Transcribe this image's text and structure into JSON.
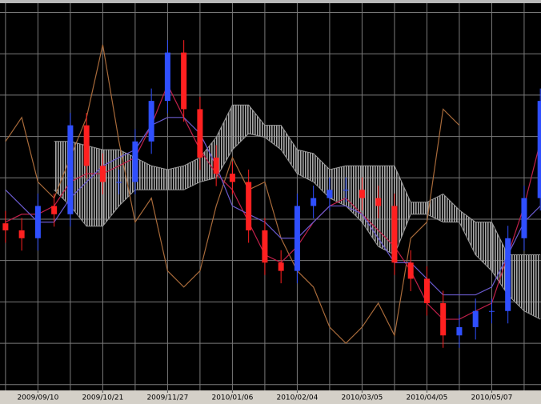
{
  "chart_data": {
    "type": "candlestick",
    "x": [
      0,
      0.5,
      1,
      1.5,
      2,
      2.5,
      3,
      3.5,
      4,
      4.5,
      5,
      5.5,
      6,
      6.5,
      7,
      7.5,
      8,
      8.5,
      9,
      9.5,
      10,
      10.5,
      11,
      11.5,
      12,
      12.5,
      13,
      13.5,
      14,
      14.5,
      15,
      15.5,
      16,
      16.5
    ],
    "open": [
      3.9,
      3.73,
      3.54,
      4.32,
      4.12,
      6.27,
      5.29,
      4.9,
      4.9,
      5.88,
      6.86,
      8.03,
      6.66,
      5.49,
      5.1,
      4.9,
      3.73,
      2.95,
      2.75,
      4.32,
      4.51,
      4.71,
      4.71,
      4.51,
      4.32,
      2.95,
      2.56,
      1.97,
      1.19,
      1.39,
      1.78,
      1.78,
      3.54,
      4.51
    ],
    "high": [
      4.2,
      4.03,
      4.62,
      4.62,
      6.57,
      6.57,
      5.59,
      5.2,
      6.18,
      7.16,
      8.33,
      8.33,
      6.96,
      5.79,
      5.4,
      5.2,
      4.03,
      3.25,
      4.62,
      4.81,
      5.01,
      5.01,
      5.01,
      4.81,
      4.62,
      3.25,
      2.86,
      2.27,
      1.69,
      2.08,
      2.08,
      3.84,
      4.81,
      7.16
    ],
    "low": [
      3.43,
      3.24,
      3.24,
      3.82,
      3.82,
      4.99,
      4.6,
      4.6,
      4.6,
      5.58,
      6.56,
      6.36,
      5.19,
      4.8,
      4.6,
      3.43,
      2.65,
      2.45,
      2.45,
      4.02,
      4.21,
      4.41,
      4.21,
      4.02,
      2.65,
      2.26,
      1.67,
      0.89,
      0.89,
      1.09,
      1.48,
      1.48,
      3.24,
      4.21
    ],
    "close": [
      3.73,
      3.54,
      4.32,
      4.12,
      6.27,
      5.29,
      4.9,
      4.9,
      5.88,
      6.86,
      8.03,
      6.66,
      5.49,
      5.1,
      4.9,
      3.73,
      2.95,
      2.75,
      4.32,
      4.51,
      4.71,
      4.71,
      4.51,
      4.32,
      2.95,
      2.56,
      1.97,
      1.19,
      1.39,
      1.78,
      1.78,
      3.54,
      4.51,
      6.86
    ],
    "up_color": "#2f4fff",
    "down_color": "#ff2020",
    "lines": [
      {
        "color": "#a86a3a",
        "values": [
          5.88,
          6.46,
          4.9,
          4.51,
          5.49,
          6.46,
          8.22,
          5.88,
          3.93,
          4.51,
          2.75,
          2.36,
          2.75,
          4.32,
          5.49,
          4.71,
          4.9,
          3.54,
          2.75,
          2.36,
          1.39,
          1.0,
          1.39,
          1.97,
          1.19,
          3.54,
          3.93,
          6.66,
          6.27,
          null,
          null,
          null,
          null,
          null
        ]
      },
      {
        "color": "#c0204a",
        "values": [
          3.93,
          4.12,
          4.12,
          4.32,
          4.9,
          5.1,
          5.1,
          5.29,
          5.49,
          6.27,
          7.25,
          6.46,
          5.68,
          5.1,
          4.71,
          3.93,
          3.14,
          2.95,
          3.34,
          3.93,
          4.32,
          4.51,
          4.12,
          3.73,
          3.34,
          2.75,
          1.97,
          1.58,
          1.58,
          1.78,
          1.97,
          3.14,
          4.32,
          5.88
        ]
      },
      {
        "color": "#6a5acd",
        "values": [
          4.71,
          4.32,
          3.93,
          3.93,
          4.51,
          4.9,
          5.29,
          5.49,
          5.68,
          6.27,
          6.46,
          6.46,
          6.07,
          5.29,
          4.32,
          4.12,
          3.93,
          3.54,
          3.54,
          3.93,
          4.32,
          4.32,
          4.12,
          3.54,
          2.95,
          2.95,
          2.56,
          2.17,
          2.17,
          2.17,
          2.36,
          3.14,
          3.93,
          4.32
        ]
      }
    ],
    "cloud": {
      "color": "#9a9a9a",
      "upper": [
        null,
        null,
        null,
        5.88,
        5.88,
        5.78,
        5.68,
        5.68,
        5.49,
        5.29,
        5.2,
        5.29,
        5.49,
        5.98,
        6.76,
        6.76,
        6.27,
        6.27,
        5.68,
        5.59,
        5.2,
        5.29,
        5.29,
        5.29,
        5.29,
        4.41,
        4.41,
        4.61,
        4.22,
        3.93,
        3.93,
        3.14,
        3.14,
        3.14
      ],
      "lower": [
        null,
        null,
        null,
        4.71,
        4.32,
        3.83,
        3.83,
        4.32,
        4.71,
        4.71,
        4.71,
        4.71,
        4.9,
        5.0,
        5.68,
        6.07,
        5.98,
        5.68,
        5.1,
        4.9,
        4.51,
        4.32,
        3.93,
        3.34,
        3.14,
        4.12,
        4.12,
        3.93,
        3.93,
        3.14,
        2.75,
        2.17,
        1.78,
        1.58
      ]
    },
    "xlim": [
      -0.17,
      16.52
    ],
    "ylim": [
      -0.14,
      9.3
    ],
    "xgrid": [
      0,
      1,
      2,
      3,
      4,
      5,
      6,
      7,
      8,
      9,
      10,
      11,
      12,
      13,
      14,
      15,
      16
    ],
    "ygrid": [
      0,
      1,
      2,
      3,
      4,
      5,
      6,
      7,
      8,
      9
    ],
    "xticks": [
      {
        "value": 1,
        "label": "2009/09/10"
      },
      {
        "value": 3,
        "label": "2009/10/21"
      },
      {
        "value": 5,
        "label": "2009/11/27"
      },
      {
        "value": 7,
        "label": "2010/01/06"
      },
      {
        "value": 9,
        "label": "2010/02/04"
      },
      {
        "value": 11,
        "label": "2010/03/05"
      },
      {
        "value": 13,
        "label": "2010/04/05"
      },
      {
        "value": 15,
        "label": "2010/05/07"
      }
    ],
    "grid": true
  }
}
